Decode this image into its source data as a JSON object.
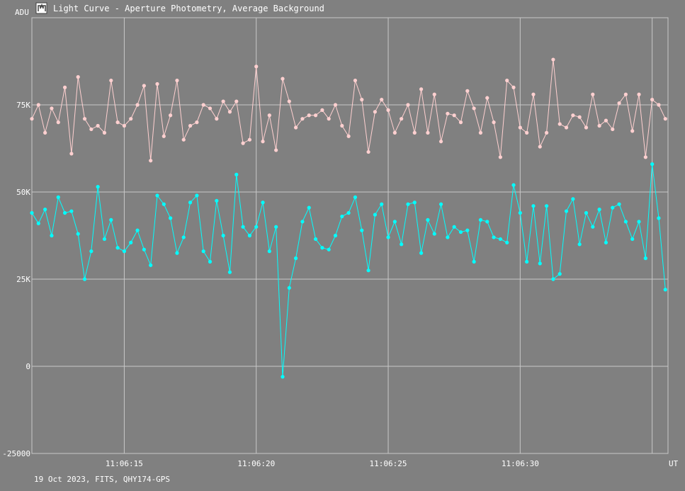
{
  "window": {
    "title": "Light Curve - Aperture Photometry, Average Background",
    "icon": "light-curve-app-icon"
  },
  "footer": {
    "caption": "19 Oct 2023, FITS, QHY174-GPS"
  },
  "colors": {
    "background": "#808080",
    "grid": "#c8c8c8",
    "axis_text": "#ffffff",
    "series_target": "#ffd0d0",
    "series_comparison": "#00ffff"
  },
  "chart_data": {
    "type": "line",
    "title": "Light Curve - Aperture Photometry, Average Background",
    "ylabel": "ADU",
    "xlabel": "UT",
    "xlim": [
      11.5,
      35.6
    ],
    "ylim": [
      -25000,
      100000
    ],
    "grid": true,
    "x_ticks": [
      {
        "value": 15,
        "label": "11:06:15"
      },
      {
        "value": 20,
        "label": "11:06:20"
      },
      {
        "value": 25,
        "label": "11:06:25"
      },
      {
        "value": 30,
        "label": "11:06:30"
      },
      {
        "value": 35,
        "label": ""
      }
    ],
    "y_ticks": [
      {
        "value": 75000,
        "label": "75K"
      },
      {
        "value": 50000,
        "label": "50K"
      },
      {
        "value": 25000,
        "label": "25K"
      },
      {
        "value": 0,
        "label": "0"
      },
      {
        "value": -25000,
        "label": "-25000"
      }
    ],
    "series": [
      {
        "key": "target",
        "color": "#ffd0d0",
        "x": [
          11.5,
          11.75,
          12.0,
          12.25,
          12.5,
          12.75,
          13.0,
          13.25,
          13.5,
          13.75,
          14.0,
          14.25,
          14.5,
          14.75,
          15.0,
          15.25,
          15.5,
          15.75,
          16.0,
          16.25,
          16.5,
          16.75,
          17.0,
          17.25,
          17.5,
          17.75,
          18.0,
          18.25,
          18.5,
          18.75,
          19.0,
          19.25,
          19.5,
          19.75,
          20.0,
          20.25,
          20.5,
          20.75,
          21.0,
          21.25,
          21.5,
          21.75,
          22.0,
          22.25,
          22.5,
          22.75,
          23.0,
          23.25,
          23.5,
          23.75,
          24.0,
          24.25,
          24.5,
          24.75,
          25.0,
          25.25,
          25.5,
          25.75,
          26.0,
          26.25,
          26.5,
          26.75,
          27.0,
          27.25,
          27.5,
          27.75,
          28.0,
          28.25,
          28.5,
          28.75,
          29.0,
          29.25,
          29.5,
          29.75,
          30.0,
          30.25,
          30.5,
          30.75,
          31.0,
          31.25,
          31.5,
          31.75,
          32.0,
          32.25,
          32.5,
          32.75,
          33.0,
          33.25,
          33.5,
          33.75,
          34.0,
          34.25,
          34.5,
          34.75,
          35.0,
          35.25,
          35.5
        ],
        "values": [
          71000,
          75000,
          67000,
          74000,
          70000,
          80000,
          61000,
          83000,
          71000,
          68000,
          69000,
          67000,
          82000,
          70000,
          69000,
          71000,
          75000,
          80500,
          59000,
          81000,
          66000,
          72000,
          82000,
          65000,
          69000,
          70000,
          75000,
          74000,
          71000,
          76000,
          73000,
          76000,
          64000,
          65000,
          86000,
          64500,
          72000,
          62000,
          82500,
          76000,
          68500,
          71000,
          72000,
          72000,
          73500,
          71000,
          75000,
          69000,
          66000,
          82000,
          76500,
          61500,
          73000,
          76500,
          73500,
          67000,
          71000,
          75000,
          67000,
          79500,
          67000,
          78000,
          64500,
          72500,
          72000,
          70000,
          79000,
          74000,
          67000,
          77000,
          70000,
          60000,
          82000,
          80000,
          68500,
          67000,
          78000,
          63000,
          67000,
          88000,
          69500,
          68500,
          72000,
          71500,
          68500,
          78000,
          69000,
          70500,
          68000,
          75500,
          78000,
          67500,
          78000,
          60000,
          76500,
          75000,
          71000
        ]
      },
      {
        "key": "comparison",
        "color": "#00ffff",
        "x": [
          11.5,
          11.75,
          12.0,
          12.25,
          12.5,
          12.75,
          13.0,
          13.25,
          13.5,
          13.75,
          14.0,
          14.25,
          14.5,
          14.75,
          15.0,
          15.25,
          15.5,
          15.75,
          16.0,
          16.25,
          16.5,
          16.75,
          17.0,
          17.25,
          17.5,
          17.75,
          18.0,
          18.25,
          18.5,
          18.75,
          19.0,
          19.25,
          19.5,
          19.75,
          20.0,
          20.25,
          20.5,
          20.75,
          21.0,
          21.25,
          21.5,
          21.75,
          22.0,
          22.25,
          22.5,
          22.75,
          23.0,
          23.25,
          23.5,
          23.75,
          24.0,
          24.25,
          24.5,
          24.75,
          25.0,
          25.25,
          25.5,
          25.75,
          26.0,
          26.25,
          26.5,
          26.75,
          27.0,
          27.25,
          27.5,
          27.75,
          28.0,
          28.25,
          28.5,
          28.75,
          29.0,
          29.25,
          29.5,
          29.75,
          30.0,
          30.25,
          30.5,
          30.75,
          31.0,
          31.25,
          31.5,
          31.75,
          32.0,
          32.25,
          32.5,
          32.75,
          33.0,
          33.25,
          33.5,
          33.75,
          34.0,
          34.25,
          34.5,
          34.75,
          35.0,
          35.25,
          35.5
        ],
        "values": [
          44000,
          41000,
          45000,
          37500,
          48500,
          44000,
          44500,
          38000,
          25000,
          33000,
          51500,
          36500,
          42000,
          34000,
          33000,
          35500,
          39000,
          33500,
          29000,
          49000,
          46500,
          42500,
          32500,
          37000,
          47000,
          49000,
          33000,
          30000,
          47500,
          37500,
          27000,
          55000,
          40000,
          37500,
          40000,
          47000,
          33000,
          40000,
          -3000,
          22500,
          31000,
          41500,
          45500,
          36500,
          34000,
          33500,
          37500,
          43000,
          44000,
          48500,
          39000,
          27500,
          43500,
          46500,
          37000,
          41500,
          35000,
          46500,
          47000,
          32500,
          42000,
          38000,
          46500,
          37000,
          40000,
          38500,
          39000,
          30000,
          42000,
          41500,
          37000,
          36500,
          35500,
          52000,
          44000,
          30000,
          46000,
          29500,
          46000,
          25000,
          26500,
          44500,
          48000,
          35000,
          44000,
          40000,
          45000,
          35500,
          45500,
          46500,
          41500,
          36500,
          41500,
          31000,
          58000,
          42500,
          22000
        ]
      }
    ]
  }
}
